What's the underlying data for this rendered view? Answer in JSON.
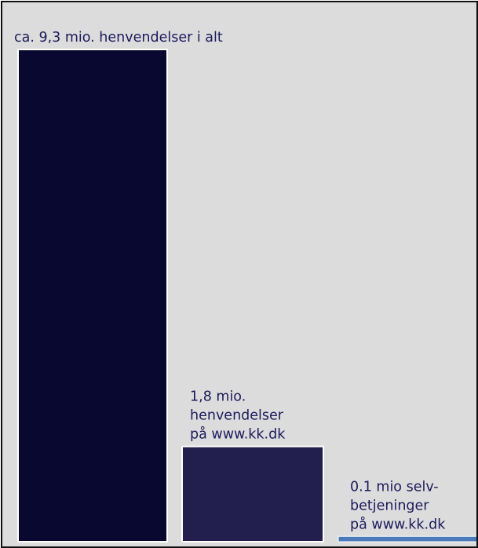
{
  "chart_data": {
    "type": "bar",
    "title": "",
    "xlabel": "",
    "ylabel": "",
    "categories": [
      "henvendelser i alt",
      "henvendelser på www.kk.dk",
      "selvbetjeninger på www.kk.dk"
    ],
    "values": [
      9.3,
      1.8,
      0.1
    ],
    "unit": "mio.",
    "ylim": [
      0,
      9.3
    ],
    "grid": false,
    "legend": "none",
    "annotations": [
      [
        "ca. 9,3 mio. henvendelser i alt"
      ],
      [
        "1,8 mio.",
        "henvendelser",
        "på www.kk.dk"
      ],
      [
        "0.1 mio selv-",
        "betjeninger",
        "på www.kk.dk"
      ]
    ],
    "colors": [
      "#090830",
      "#221f4f",
      "#4a7ab8"
    ]
  },
  "colors": {
    "background": "#dcdcdd",
    "border": "#111111",
    "bar_outline": "#ffffff",
    "label_text": "#1c1a5a"
  }
}
